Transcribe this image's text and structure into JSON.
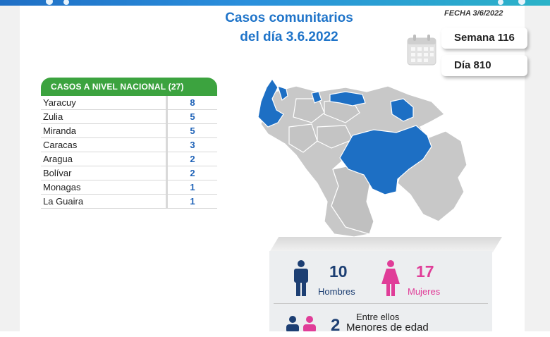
{
  "header": {
    "title_line1": "Casos comunitarios",
    "title_line2": "del día 3.6.2022",
    "fecha": "FECHA 3/6/2022",
    "semana": "Semana 116",
    "dia": "Día 810"
  },
  "table": {
    "header": "CASOS A NIVEL NACIONAL  (27)",
    "rows": [
      {
        "name": "Yaracuy",
        "value": "8"
      },
      {
        "name": "Zulia",
        "value": "5"
      },
      {
        "name": "Miranda",
        "value": "5"
      },
      {
        "name": "Caracas",
        "value": "3"
      },
      {
        "name": "Aragua",
        "value": "2"
      },
      {
        "name": "Bolívar",
        "value": "2"
      },
      {
        "name": "Monagas",
        "value": "1"
      },
      {
        "name": "La Guaira",
        "value": "1"
      }
    ]
  },
  "stats": {
    "men_count": "10",
    "men_label": "Hombres",
    "women_count": "17",
    "women_label": "Mujeres",
    "minors_count": "2",
    "minors_label_line1": "Entre ellos",
    "minors_label_line2": "Menores de edad"
  },
  "colors": {
    "title_blue": "#1f74c9",
    "table_green": "#3ca33f",
    "value_blue": "#2164b8",
    "map_highlight": "#1d6fc4",
    "map_base": "#c8c8c8",
    "men": "#1d3f73",
    "women": "#e03d98"
  },
  "icons": {
    "calendar": "calendar-icon",
    "man": "man-icon",
    "woman": "woman-icon"
  }
}
